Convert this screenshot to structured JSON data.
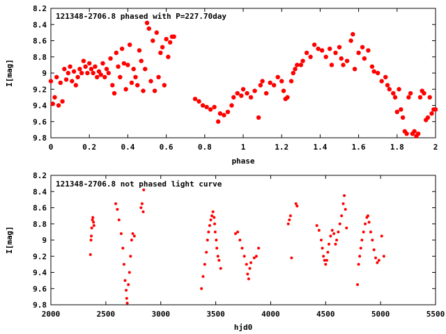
{
  "chart_data": [
    {
      "type": "scatter",
      "title": "121348-2706.8 phased with P=227.70day",
      "xlabel": "phase",
      "ylabel": "I[mag]",
      "xlim": [
        0,
        2
      ],
      "ylim": [
        9.8,
        8.2
      ],
      "xticks": [
        "0",
        "0.2",
        "0.4",
        "0.6",
        "0.8",
        "1",
        "1.2",
        "1.4",
        "1.6",
        "1.8",
        "2"
      ],
      "yticks": [
        "8.2",
        "8.4",
        "8.6",
        "8.8",
        "9",
        "9.2",
        "9.4",
        "9.6",
        "9.8"
      ],
      "grid": false,
      "marker_color": "#ff0000",
      "marker": "filled-circle",
      "points": [
        [
          0.0,
          9.1
        ],
        [
          0.01,
          9.38
        ],
        [
          0.02,
          9.3
        ],
        [
          0.03,
          9.05
        ],
        [
          0.04,
          9.4
        ],
        [
          0.05,
          9.12
        ],
        [
          0.06,
          9.35
        ],
        [
          0.07,
          8.95
        ],
        [
          0.08,
          9.08
        ],
        [
          0.09,
          9.0
        ],
        [
          0.1,
          8.92
        ],
        [
          0.11,
          9.1
        ],
        [
          0.12,
          8.98
        ],
        [
          0.13,
          9.15
        ],
        [
          0.14,
          9.05
        ],
        [
          0.15,
          8.95
        ],
        [
          0.16,
          9.0
        ],
        [
          0.17,
          8.85
        ],
        [
          0.18,
          8.92
        ],
        [
          0.19,
          9.0
        ],
        [
          0.2,
          8.88
        ],
        [
          0.21,
          8.95
        ],
        [
          0.22,
          9.0
        ],
        [
          0.23,
          8.92
        ],
        [
          0.24,
          9.05
        ],
        [
          0.25,
          8.98
        ],
        [
          0.26,
          9.02
        ],
        [
          0.27,
          8.88
        ],
        [
          0.28,
          9.05
        ],
        [
          0.29,
          8.95
        ],
        [
          0.3,
          9.0
        ],
        [
          0.31,
          8.82
        ],
        [
          0.32,
          9.15
        ],
        [
          0.33,
          9.25
        ],
        [
          0.34,
          8.75
        ],
        [
          0.35,
          8.92
        ],
        [
          0.36,
          9.05
        ],
        [
          0.37,
          8.7
        ],
        [
          0.38,
          8.88
        ],
        [
          0.39,
          9.2
        ],
        [
          0.4,
          8.9
        ],
        [
          0.41,
          8.65
        ],
        [
          0.42,
          9.12
        ],
        [
          0.43,
          8.95
        ],
        [
          0.44,
          9.05
        ],
        [
          0.45,
          9.15
        ],
        [
          0.46,
          8.72
        ],
        [
          0.47,
          8.85
        ],
        [
          0.48,
          9.22
        ],
        [
          0.49,
          8.95
        ],
        [
          0.5,
          8.38
        ],
        [
          0.51,
          8.45
        ],
        [
          0.52,
          9.1
        ],
        [
          0.53,
          8.6
        ],
        [
          0.54,
          9.22
        ],
        [
          0.55,
          8.5
        ],
        [
          0.56,
          9.05
        ],
        [
          0.57,
          8.75
        ],
        [
          0.58,
          8.68
        ],
        [
          0.59,
          9.15
        ],
        [
          0.6,
          8.58
        ],
        [
          0.61,
          8.8
        ],
        [
          0.62,
          8.62
        ],
        [
          0.63,
          8.55
        ],
        [
          0.64,
          8.55
        ],
        [
          0.75,
          9.32
        ],
        [
          0.77,
          9.35
        ],
        [
          0.79,
          9.4
        ],
        [
          0.81,
          9.42
        ],
        [
          0.83,
          9.45
        ],
        [
          0.85,
          9.42
        ],
        [
          0.87,
          9.6
        ],
        [
          0.88,
          9.5
        ],
        [
          0.9,
          9.52
        ],
        [
          0.92,
          9.48
        ],
        [
          0.94,
          9.4
        ],
        [
          0.95,
          9.3
        ],
        [
          0.97,
          9.25
        ],
        [
          0.99,
          9.28
        ],
        [
          1.0,
          9.2
        ],
        [
          1.02,
          9.25
        ],
        [
          1.04,
          9.3
        ],
        [
          1.06,
          9.22
        ],
        [
          1.08,
          9.55
        ],
        [
          1.09,
          9.15
        ],
        [
          1.1,
          9.1
        ],
        [
          1.12,
          9.25
        ],
        [
          1.14,
          9.12
        ],
        [
          1.16,
          9.15
        ],
        [
          1.18,
          9.05
        ],
        [
          1.2,
          9.1
        ],
        [
          1.21,
          9.22
        ],
        [
          1.22,
          9.32
        ],
        [
          1.23,
          9.3
        ],
        [
          1.25,
          9.1
        ],
        [
          1.26,
          9.0
        ],
        [
          1.27,
          8.95
        ],
        [
          1.28,
          8.9
        ],
        [
          1.3,
          8.9
        ],
        [
          1.31,
          8.85
        ],
        [
          1.33,
          8.75
        ],
        [
          1.35,
          8.8
        ],
        [
          1.37,
          8.65
        ],
        [
          1.39,
          8.7
        ],
        [
          1.41,
          8.72
        ],
        [
          1.43,
          8.8
        ],
        [
          1.45,
          8.7
        ],
        [
          1.46,
          8.9
        ],
        [
          1.48,
          8.75
        ],
        [
          1.5,
          8.68
        ],
        [
          1.51,
          8.82
        ],
        [
          1.52,
          8.9
        ],
        [
          1.54,
          8.85
        ],
        [
          1.56,
          8.6
        ],
        [
          1.57,
          8.52
        ],
        [
          1.58,
          8.95
        ],
        [
          1.6,
          8.75
        ],
        [
          1.62,
          8.68
        ],
        [
          1.63,
          8.82
        ],
        [
          1.65,
          8.72
        ],
        [
          1.67,
          8.92
        ],
        [
          1.68,
          8.98
        ],
        [
          1.7,
          9.0
        ],
        [
          1.72,
          9.1
        ],
        [
          1.74,
          9.05
        ],
        [
          1.75,
          9.15
        ],
        [
          1.76,
          9.2
        ],
        [
          1.78,
          9.25
        ],
        [
          1.79,
          9.3
        ],
        [
          1.8,
          9.48
        ],
        [
          1.81,
          9.2
        ],
        [
          1.82,
          9.45
        ],
        [
          1.83,
          9.55
        ],
        [
          1.84,
          9.72
        ],
        [
          1.85,
          9.75
        ],
        [
          1.86,
          9.3
        ],
        [
          1.87,
          9.25
        ],
        [
          1.88,
          9.75
        ],
        [
          1.89,
          9.72
        ],
        [
          1.9,
          9.78
        ],
        [
          1.91,
          9.75
        ],
        [
          1.92,
          9.3
        ],
        [
          1.93,
          9.22
        ],
        [
          1.94,
          9.25
        ],
        [
          1.95,
          9.58
        ],
        [
          1.96,
          9.55
        ],
        [
          1.97,
          9.3
        ],
        [
          1.98,
          9.5
        ],
        [
          1.99,
          9.45
        ],
        [
          2.0,
          9.45
        ]
      ]
    },
    {
      "type": "scatter",
      "title": "121348-2706.8 not phased light curve",
      "xlabel": "hjd0",
      "ylabel": "I[mag]",
      "xlim": [
        2000,
        5500
      ],
      "ylim": [
        9.8,
        8.2
      ],
      "xticks": [
        "2000",
        "2500",
        "3000",
        "3500",
        "4000",
        "4500",
        "5000",
        "5500"
      ],
      "yticks": [
        "8.2",
        "8.4",
        "8.6",
        "8.8",
        "9",
        "9.2",
        "9.4",
        "9.6",
        "9.8"
      ],
      "grid": false,
      "marker_color": "#ff0000",
      "marker": "small-circle",
      "points": [
        [
          2360,
          9.18
        ],
        [
          2365,
          9.0
        ],
        [
          2368,
          8.95
        ],
        [
          2372,
          8.85
        ],
        [
          2378,
          8.75
        ],
        [
          2382,
          8.72
        ],
        [
          2388,
          8.78
        ],
        [
          2392,
          8.82
        ],
        [
          2590,
          8.55
        ],
        [
          2605,
          8.62
        ],
        [
          2620,
          8.75
        ],
        [
          2640,
          8.92
        ],
        [
          2655,
          9.1
        ],
        [
          2665,
          9.3
        ],
        [
          2675,
          9.5
        ],
        [
          2685,
          9.62
        ],
        [
          2690,
          9.72
        ],
        [
          2695,
          9.78
        ],
        [
          2705,
          9.55
        ],
        [
          2715,
          9.4
        ],
        [
          2725,
          9.2
        ],
        [
          2735,
          9.0
        ],
        [
          2745,
          8.92
        ],
        [
          2760,
          8.95
        ],
        [
          2820,
          8.6
        ],
        [
          2830,
          8.55
        ],
        [
          2840,
          8.65
        ],
        [
          2845,
          8.38
        ],
        [
          3370,
          9.6
        ],
        [
          3385,
          9.45
        ],
        [
          3400,
          9.3
        ],
        [
          3415,
          9.15
        ],
        [
          3425,
          9.0
        ],
        [
          3435,
          8.9
        ],
        [
          3445,
          8.82
        ],
        [
          3455,
          8.75
        ],
        [
          3465,
          8.7
        ],
        [
          3475,
          8.65
        ],
        [
          3485,
          8.72
        ],
        [
          3490,
          8.8
        ],
        [
          3495,
          8.9
        ],
        [
          3505,
          9.0
        ],
        [
          3510,
          9.1
        ],
        [
          3520,
          9.2
        ],
        [
          3530,
          9.25
        ],
        [
          3545,
          9.35
        ],
        [
          3680,
          8.92
        ],
        [
          3700,
          8.9
        ],
        [
          3720,
          9.0
        ],
        [
          3740,
          9.1
        ],
        [
          3760,
          9.2
        ],
        [
          3780,
          9.3
        ],
        [
          3790,
          9.42
        ],
        [
          3800,
          9.48
        ],
        [
          3810,
          9.35
        ],
        [
          3820,
          9.28
        ],
        [
          3850,
          9.22
        ],
        [
          3870,
          9.2
        ],
        [
          3890,
          9.1
        ],
        [
          4160,
          8.8
        ],
        [
          4170,
          8.75
        ],
        [
          4180,
          8.7
        ],
        [
          4190,
          9.22
        ],
        [
          4230,
          8.55
        ],
        [
          4240,
          8.58
        ],
        [
          4420,
          8.82
        ],
        [
          4440,
          8.88
        ],
        [
          4460,
          9.0
        ],
        [
          4470,
          9.1
        ],
        [
          4480,
          9.2
        ],
        [
          4490,
          9.25
        ],
        [
          4500,
          9.3
        ],
        [
          4510,
          9.25
        ],
        [
          4520,
          9.15
        ],
        [
          4530,
          9.05
        ],
        [
          4545,
          8.95
        ],
        [
          4560,
          8.88
        ],
        [
          4575,
          8.92
        ],
        [
          4590,
          9.05
        ],
        [
          4600,
          9.0
        ],
        [
          4615,
          8.9
        ],
        [
          4630,
          8.8
        ],
        [
          4645,
          8.7
        ],
        [
          4660,
          8.55
        ],
        [
          4670,
          8.45
        ],
        [
          4680,
          8.62
        ],
        [
          4690,
          8.85
        ],
        [
          4790,
          9.55
        ],
        [
          4800,
          9.3
        ],
        [
          4810,
          9.2
        ],
        [
          4820,
          9.1
        ],
        [
          4830,
          9.0
        ],
        [
          4845,
          8.9
        ],
        [
          4860,
          8.8
        ],
        [
          4875,
          8.72
        ],
        [
          4885,
          8.7
        ],
        [
          4895,
          8.78
        ],
        [
          4910,
          8.9
        ],
        [
          4925,
          9.0
        ],
        [
          4940,
          9.12
        ],
        [
          4955,
          9.22
        ],
        [
          4970,
          9.28
        ],
        [
          4985,
          9.25
        ],
        [
          5010,
          8.95
        ],
        [
          5030,
          9.2
        ]
      ]
    }
  ]
}
